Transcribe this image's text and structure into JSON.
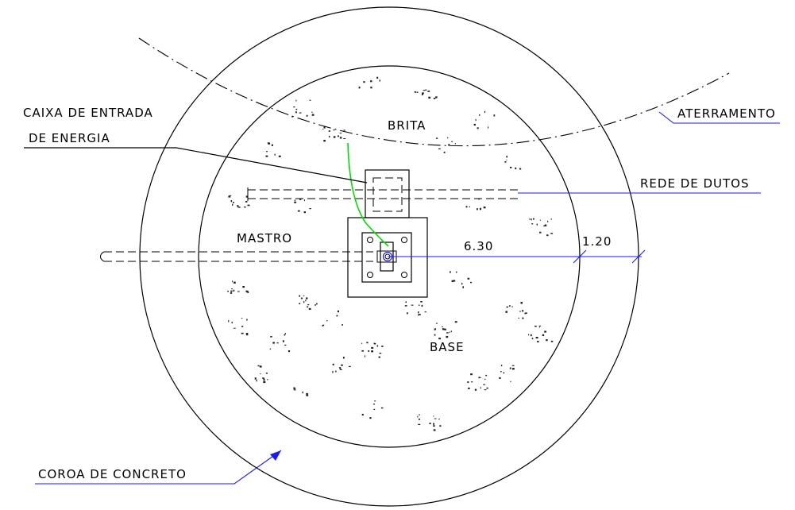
{
  "labels": {
    "aterramento": "ATERRAMENTO",
    "caixa_line1": "CAIXA DE ENTRADA",
    "caixa_line2": "DE ENERGIA",
    "brita": "BRITA",
    "rede_de_dutos": "REDE DE DUTOS",
    "mastro": "MASTRO",
    "base": "BASE",
    "coroa_de_concreto": "COROA DE CONCRETO"
  },
  "dimensions": {
    "radius_base": "6.30",
    "width_coroa": "1.20"
  },
  "colors": {
    "linework": "#000000",
    "dimension_and_leaders": "#1a1aff",
    "grounding_cable": "#00dd00",
    "background": "#ffffff"
  }
}
